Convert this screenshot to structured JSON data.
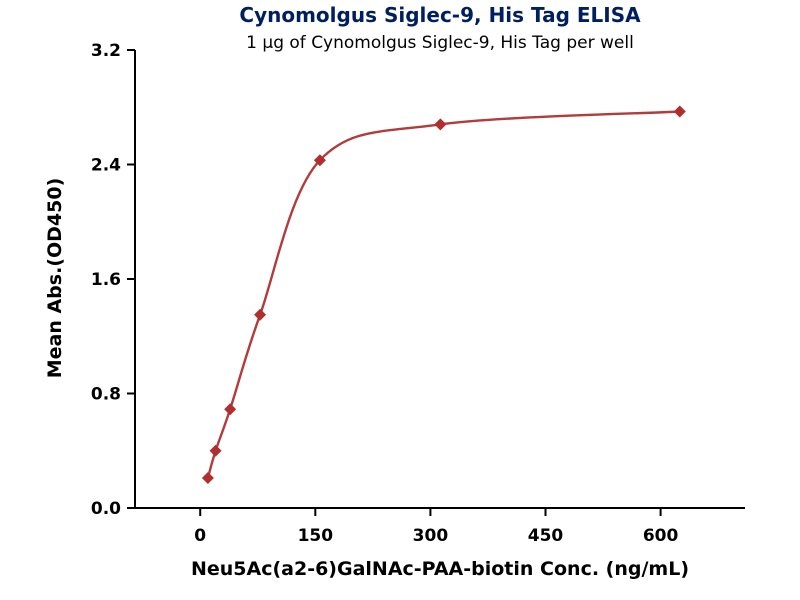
{
  "chart_data": {
    "type": "scatter",
    "title": "Cynomolgus Siglec-9, His Tag ELISA",
    "subtitle": "1 μg of Cynomolgus Siglec-9, His Tag per well",
    "xlabel": "Neu5Ac(a2-6)GalNAc-PAA-biotin Conc. (ng/mL)",
    "ylabel": "Mean Abs.(OD450)",
    "x": [
      10,
      20,
      39,
      78,
      156,
      313,
      625
    ],
    "y": [
      0.21,
      0.4,
      0.69,
      1.35,
      2.43,
      2.68,
      2.77
    ],
    "xlim": [
      -85,
      710
    ],
    "ylim": [
      0,
      3.2
    ],
    "xticks": [
      {
        "v": 0,
        "label": "0"
      },
      {
        "v": 150,
        "label": "150"
      },
      {
        "v": 300,
        "label": "300"
      },
      {
        "v": 450,
        "label": "450"
      },
      {
        "v": 600,
        "label": "600"
      }
    ],
    "yticks": [
      {
        "v": 0.0,
        "label": "0.0"
      },
      {
        "v": 0.8,
        "label": "0.8"
      },
      {
        "v": 1.6,
        "label": "1.6"
      },
      {
        "v": 2.4,
        "label": "2.4"
      },
      {
        "v": 3.2,
        "label": "3.2"
      }
    ],
    "grid": false,
    "legend": "none",
    "marker": "diamond",
    "line_color": "#b23b3b",
    "marker_color": "#b02e2e",
    "axis_color": "#000000",
    "title_color": "#001f5f"
  }
}
